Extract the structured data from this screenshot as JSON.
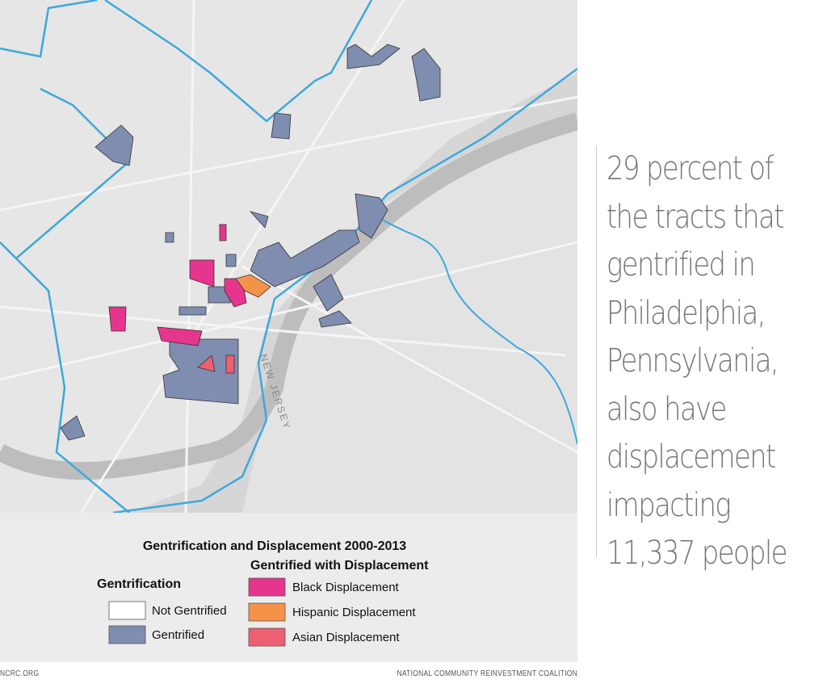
{
  "map": {
    "label_river": "NEW JERSEY"
  },
  "legend": {
    "title": "Gentrification and Displacement 2000-2013",
    "gentrification": {
      "title": "Gentrification",
      "items": [
        {
          "label": "Not Gentrified",
          "color": "#ffffff"
        },
        {
          "label": "Gentrified",
          "color": "#7f8db0"
        }
      ]
    },
    "displacement": {
      "title": "Gentrified with Displacement",
      "items": [
        {
          "label": "Black Displacement",
          "color": "#e6358d"
        },
        {
          "label": "Hispanic Displacement",
          "color": "#f5924a"
        },
        {
          "label": "Asian Displacement",
          "color": "#ef5f72"
        }
      ]
    }
  },
  "callout": {
    "lines": [
      "29 percent of",
      "the tracts that",
      "gentrified in",
      "Philadelphia,",
      "Pennsylvania,",
      "also have",
      "displacement",
      "impacting",
      "11,337 people"
    ]
  },
  "footer": {
    "left": "NCRC.ORG",
    "right": "NATIONAL COMMUNITY REINVESTMENT COALITION"
  }
}
